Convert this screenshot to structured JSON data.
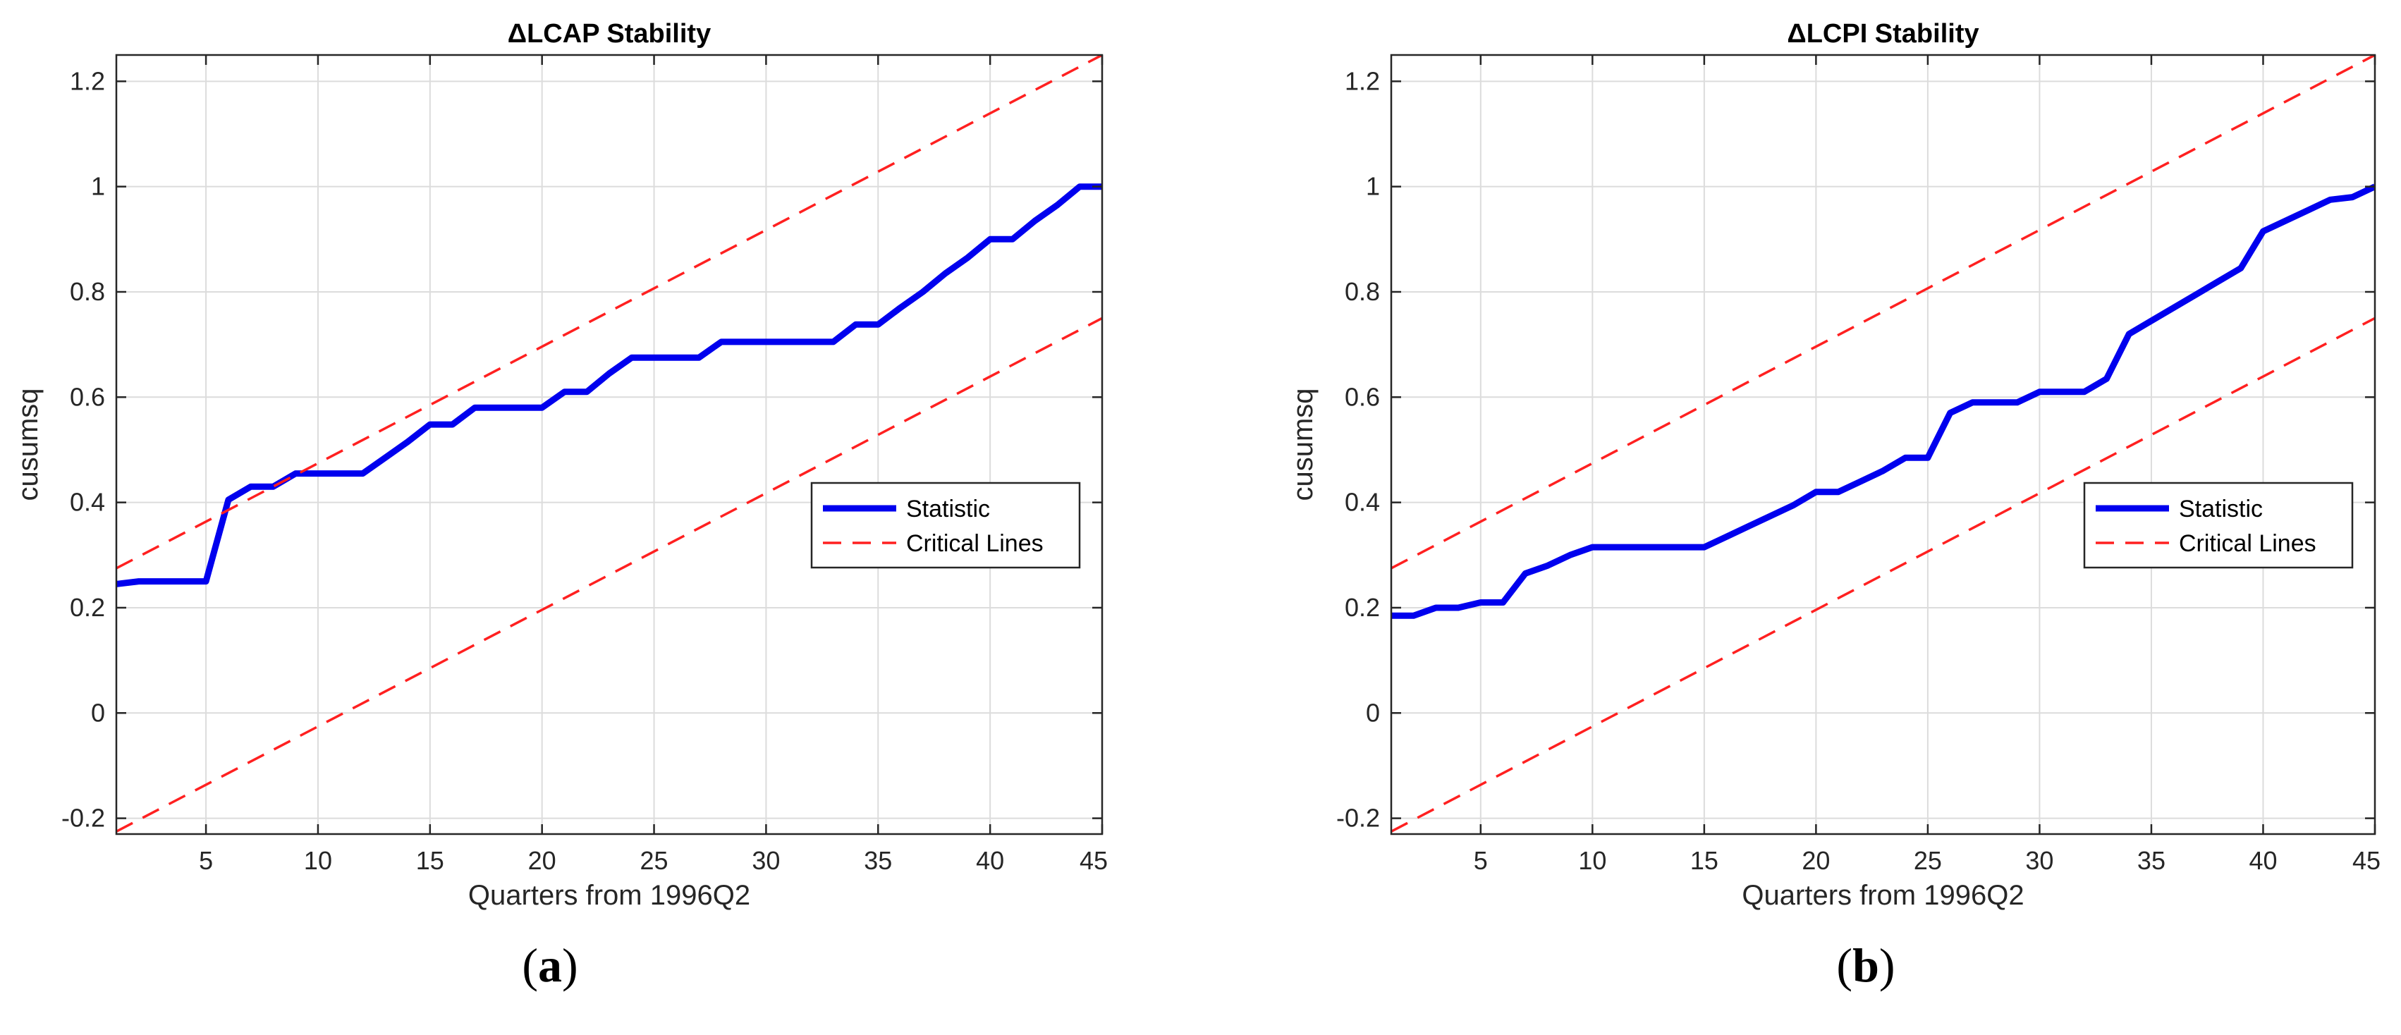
{
  "chart_data": [
    {
      "type": "line",
      "panel_label_prefix": "(",
      "panel_label": "a",
      "panel_label_suffix": ")",
      "title": "ΔLCAP Stability",
      "xlabel": "Quarters from 1996Q2",
      "ylabel": "cusumsq",
      "xlim": [
        1,
        45
      ],
      "ylim": [
        -0.23,
        1.25
      ],
      "xticks": [
        5,
        10,
        15,
        20,
        25,
        30,
        35,
        40,
        45
      ],
      "yticks": [
        -0.2,
        0,
        0.2,
        0.4,
        0.6,
        0.8,
        1,
        1.2
      ],
      "ytick_labels": [
        "-0.2",
        "0",
        "0.2",
        "0.4",
        "0.6",
        "0.8",
        "1",
        "1.2"
      ],
      "legend_position": "right",
      "series": [
        {
          "name": "Statistic",
          "color": "#0000ee",
          "style": "solid",
          "x": [
            1,
            2,
            3,
            4,
            5,
            6,
            7,
            8,
            9,
            10,
            11,
            12,
            13,
            14,
            15,
            16,
            17,
            18,
            19,
            20,
            21,
            22,
            23,
            24,
            25,
            26,
            27,
            28,
            29,
            30,
            31,
            32,
            33,
            34,
            35,
            36,
            37,
            38,
            39,
            40,
            41,
            42,
            43,
            44,
            45
          ],
          "values": [
            0.245,
            0.25,
            0.25,
            0.25,
            0.25,
            0.405,
            0.43,
            0.43,
            0.455,
            0.455,
            0.455,
            0.455,
            0.485,
            0.515,
            0.548,
            0.548,
            0.58,
            0.58,
            0.58,
            0.58,
            0.61,
            0.61,
            0.645,
            0.675,
            0.675,
            0.675,
            0.675,
            0.705,
            0.705,
            0.705,
            0.705,
            0.705,
            0.705,
            0.738,
            0.738,
            0.77,
            0.8,
            0.835,
            0.865,
            0.9,
            0.9,
            0.935,
            0.965,
            1.0,
            1.0
          ]
        },
        {
          "name": "Critical Lines",
          "color": "#ff2020",
          "style": "dashed",
          "x": [
            1,
            45
          ],
          "values": [
            0.275,
            1.25
          ]
        },
        {
          "name": "Critical Lines (lower)",
          "color": "#ff2020",
          "style": "dashed",
          "x": [
            1,
            45
          ],
          "values": [
            -0.225,
            0.75
          ]
        }
      ],
      "legend": [
        "Statistic",
        "Critical Lines"
      ]
    },
    {
      "type": "line",
      "panel_label_prefix": "(",
      "panel_label": "b",
      "panel_label_suffix": ")",
      "title": "ΔLCPI Stability",
      "xlabel": "Quarters from 1996Q2",
      "ylabel": "cusumsq",
      "xlim": [
        1,
        45
      ],
      "ylim": [
        -0.23,
        1.25
      ],
      "xticks": [
        5,
        10,
        15,
        20,
        25,
        30,
        35,
        40,
        45
      ],
      "yticks": [
        -0.2,
        0,
        0.2,
        0.4,
        0.6,
        0.8,
        1,
        1.2
      ],
      "ytick_labels": [
        "-0.2",
        "0",
        "0.2",
        "0.4",
        "0.6",
        "0.8",
        "1",
        "1.2"
      ],
      "legend_position": "right",
      "series": [
        {
          "name": "Statistic",
          "color": "#0000ee",
          "style": "solid",
          "x": [
            1,
            2,
            3,
            4,
            5,
            6,
            7,
            8,
            9,
            10,
            11,
            12,
            13,
            14,
            15,
            16,
            17,
            18,
            19,
            20,
            21,
            22,
            23,
            24,
            25,
            26,
            27,
            28,
            29,
            30,
            31,
            32,
            33,
            34,
            35,
            36,
            37,
            38,
            39,
            40,
            41,
            42,
            43,
            44,
            45
          ],
          "values": [
            0.185,
            0.185,
            0.2,
            0.2,
            0.21,
            0.21,
            0.265,
            0.28,
            0.3,
            0.315,
            0.315,
            0.315,
            0.315,
            0.315,
            0.315,
            0.335,
            0.355,
            0.375,
            0.395,
            0.42,
            0.42,
            0.44,
            0.46,
            0.485,
            0.485,
            0.57,
            0.59,
            0.59,
            0.59,
            0.61,
            0.61,
            0.61,
            0.635,
            0.72,
            0.745,
            0.77,
            0.795,
            0.82,
            0.845,
            0.915,
            0.935,
            0.955,
            0.975,
            0.98,
            1.0
          ]
        },
        {
          "name": "Critical Lines",
          "color": "#ff2020",
          "style": "dashed",
          "x": [
            1,
            45
          ],
          "values": [
            0.275,
            1.25
          ]
        },
        {
          "name": "Critical Lines (lower)",
          "color": "#ff2020",
          "style": "dashed",
          "x": [
            1,
            45
          ],
          "values": [
            -0.225,
            0.75
          ]
        }
      ],
      "legend": [
        "Statistic",
        "Critical Lines"
      ]
    }
  ]
}
